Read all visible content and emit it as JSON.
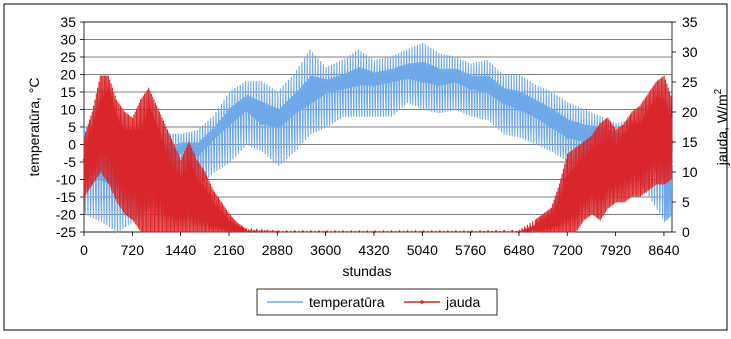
{
  "chart_data": {
    "type": "line",
    "title": "",
    "xlabel": "stundas",
    "ylabel_left": "temperatūra, °C",
    "ylabel_right": {
      "base": "jauda, W/m",
      "sup": "2"
    },
    "x_ticks": [
      0,
      720,
      1440,
      2160,
      2880,
      3600,
      4320,
      5040,
      5760,
      6480,
      7200,
      7920,
      8640
    ],
    "xlim": [
      0,
      8760
    ],
    "ylim_left": [
      -25,
      35
    ],
    "y_ticks_left": [
      -25,
      -20,
      -15,
      -10,
      -5,
      0,
      5,
      10,
      15,
      20,
      25,
      30,
      35
    ],
    "ylim_right": [
      0,
      35
    ],
    "y_ticks_right": [
      0,
      5,
      10,
      15,
      20,
      25,
      30,
      35
    ],
    "grid": true,
    "legend_position": "bottom-center",
    "series": [
      {
        "name": "temperatūra",
        "axis": "left",
        "color": "#6FA8E8",
        "x": [
          0,
          240,
          480,
          720,
          960,
          1200,
          1440,
          1680,
          1920,
          2160,
          2400,
          2640,
          2880,
          3120,
          3360,
          3600,
          3840,
          4080,
          4320,
          4560,
          4800,
          5040,
          5280,
          5520,
          5760,
          6000,
          6240,
          6480,
          6720,
          6960,
          7200,
          7440,
          7680,
          7920,
          8160,
          8400,
          8640,
          8760
        ],
        "y": [
          -5,
          -10,
          -12,
          -8,
          -3,
          -5,
          -2,
          -3,
          2,
          6,
          10,
          6,
          5,
          9,
          12,
          15,
          16,
          17,
          17,
          18,
          19,
          18,
          17,
          18,
          16,
          15,
          12,
          10,
          8,
          5,
          2,
          1,
          2,
          0,
          2,
          -5,
          -10,
          -5
        ],
        "range_low": [
          -20,
          -22,
          -25,
          -22,
          -18,
          -15,
          -12,
          -12,
          -8,
          -5,
          0,
          -2,
          -6,
          -2,
          3,
          5,
          8,
          8,
          8,
          8,
          12,
          10,
          9,
          10,
          8,
          7,
          3,
          2,
          0,
          -2,
          -5,
          -8,
          -8,
          -10,
          -8,
          -15,
          -22,
          -20
        ],
        "range_high": [
          5,
          2,
          0,
          3,
          4,
          3,
          3,
          4,
          8,
          15,
          18,
          18,
          15,
          20,
          27,
          22,
          24,
          27,
          24,
          25,
          27,
          29,
          26,
          25,
          23,
          24,
          20,
          20,
          17,
          15,
          12,
          10,
          8,
          6,
          7,
          5,
          0,
          2
        ]
      },
      {
        "name": "jauda",
        "axis": "right",
        "color": "#D8262B",
        "x": [
          0,
          120,
          240,
          360,
          480,
          600,
          720,
          840,
          960,
          1080,
          1200,
          1320,
          1440,
          1560,
          1680,
          1800,
          1920,
          2040,
          2160,
          2280,
          2400,
          2880,
          3600,
          4320,
          5040,
          5760,
          6480,
          6720,
          6840,
          6960,
          7080,
          7200,
          7320,
          7440,
          7560,
          7680,
          7800,
          7920,
          8040,
          8160,
          8280,
          8400,
          8520,
          8640,
          8760
        ],
        "y": [
          12,
          15,
          18,
          22,
          16,
          14,
          15,
          12,
          18,
          14,
          9,
          6,
          6,
          8,
          5,
          4,
          2,
          1.5,
          0.5,
          0.4,
          0.1,
          0,
          0,
          0,
          0,
          0,
          0,
          0.4,
          1,
          2,
          3,
          6,
          8,
          10,
          12,
          11,
          12,
          12,
          14,
          16,
          15,
          18,
          20,
          18,
          15
        ],
        "range_low": [
          6,
          8,
          10,
          8,
          5,
          3,
          2,
          0,
          0,
          0,
          0,
          0,
          0,
          0,
          0,
          0,
          0,
          0,
          0,
          0,
          0,
          0,
          0,
          0,
          0,
          0,
          0,
          0,
          0,
          0,
          0,
          0,
          0,
          2,
          3,
          2,
          4,
          5,
          5,
          6,
          6,
          7,
          8,
          8,
          9
        ],
        "range_high": [
          16,
          20,
          26,
          26,
          22,
          20,
          19,
          22,
          24,
          21,
          18,
          15,
          12,
          15,
          12,
          10,
          7,
          5,
          3,
          1.5,
          0.6,
          0.2,
          0.2,
          0.2,
          0.2,
          0.2,
          0.3,
          2,
          3,
          4,
          8,
          13,
          14,
          15,
          16,
          18,
          19,
          17,
          18,
          20,
          21,
          23,
          25,
          26,
          22
        ]
      }
    ]
  }
}
